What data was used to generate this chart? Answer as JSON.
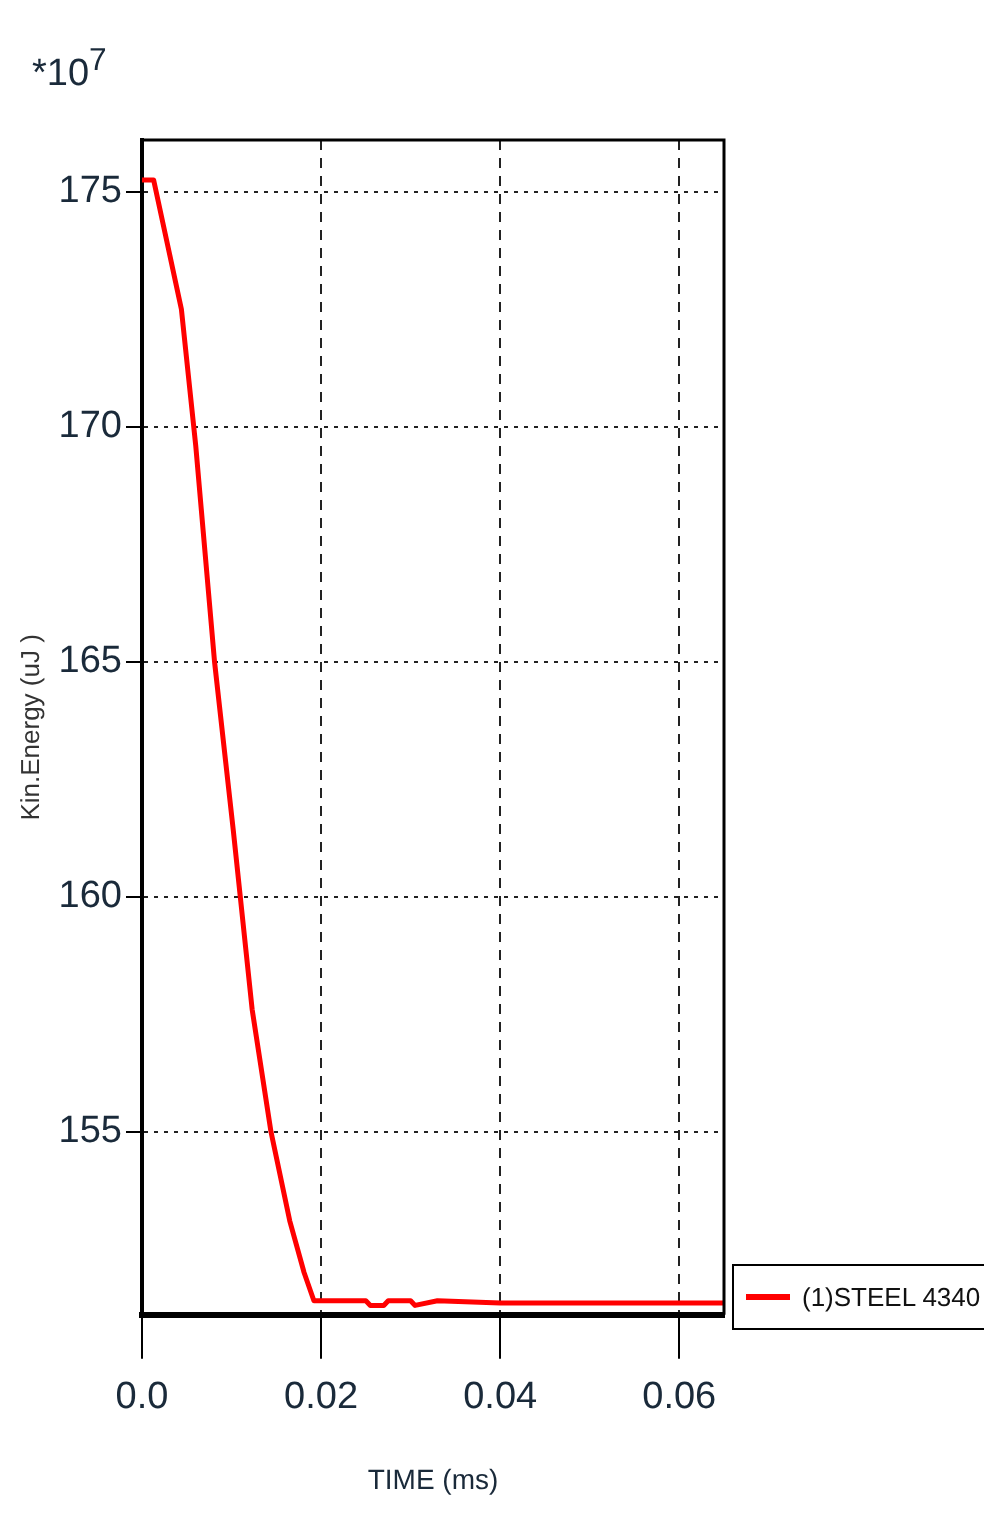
{
  "chart_data": {
    "type": "line",
    "xlabel": "TIME (ms)",
    "ylabel": "Kin.Energy (uJ )",
    "annotations": [
      "*10$^{7}$"
    ],
    "series": [
      {
        "name": "(1)STEEL 4340",
        "color": "#ff0000",
        "x": [
          0,
          0.0013,
          0.0044,
          0.006,
          0.0081,
          0.0102,
          0.0123,
          0.0144,
          0.0165,
          0.0181,
          0.0192,
          0.025,
          0.0255,
          0.027,
          0.0275,
          0.03,
          0.0305,
          0.033,
          0.04,
          0.065
        ],
        "values": [
          175.25,
          175.25,
          172.5,
          169.6,
          165,
          161.4,
          157.6,
          155,
          153.1,
          152,
          151.4,
          151.4,
          151.3,
          151.3,
          151.4,
          151.4,
          151.3,
          151.4,
          151.35,
          151.35
        ]
      }
    ],
    "xlim": [
      0,
      0.065
    ],
    "xticks": [
      {
        "value": 0,
        "label": "0.0"
      },
      0.02,
      0.04,
      0.06
    ],
    "ylim": [
      151.1,
      176.1
    ],
    "yticks": [
      155,
      160,
      165,
      170,
      175
    ],
    "grid": true,
    "legend": "bottom right",
    "marker": "none",
    "line_style": "solid"
  }
}
